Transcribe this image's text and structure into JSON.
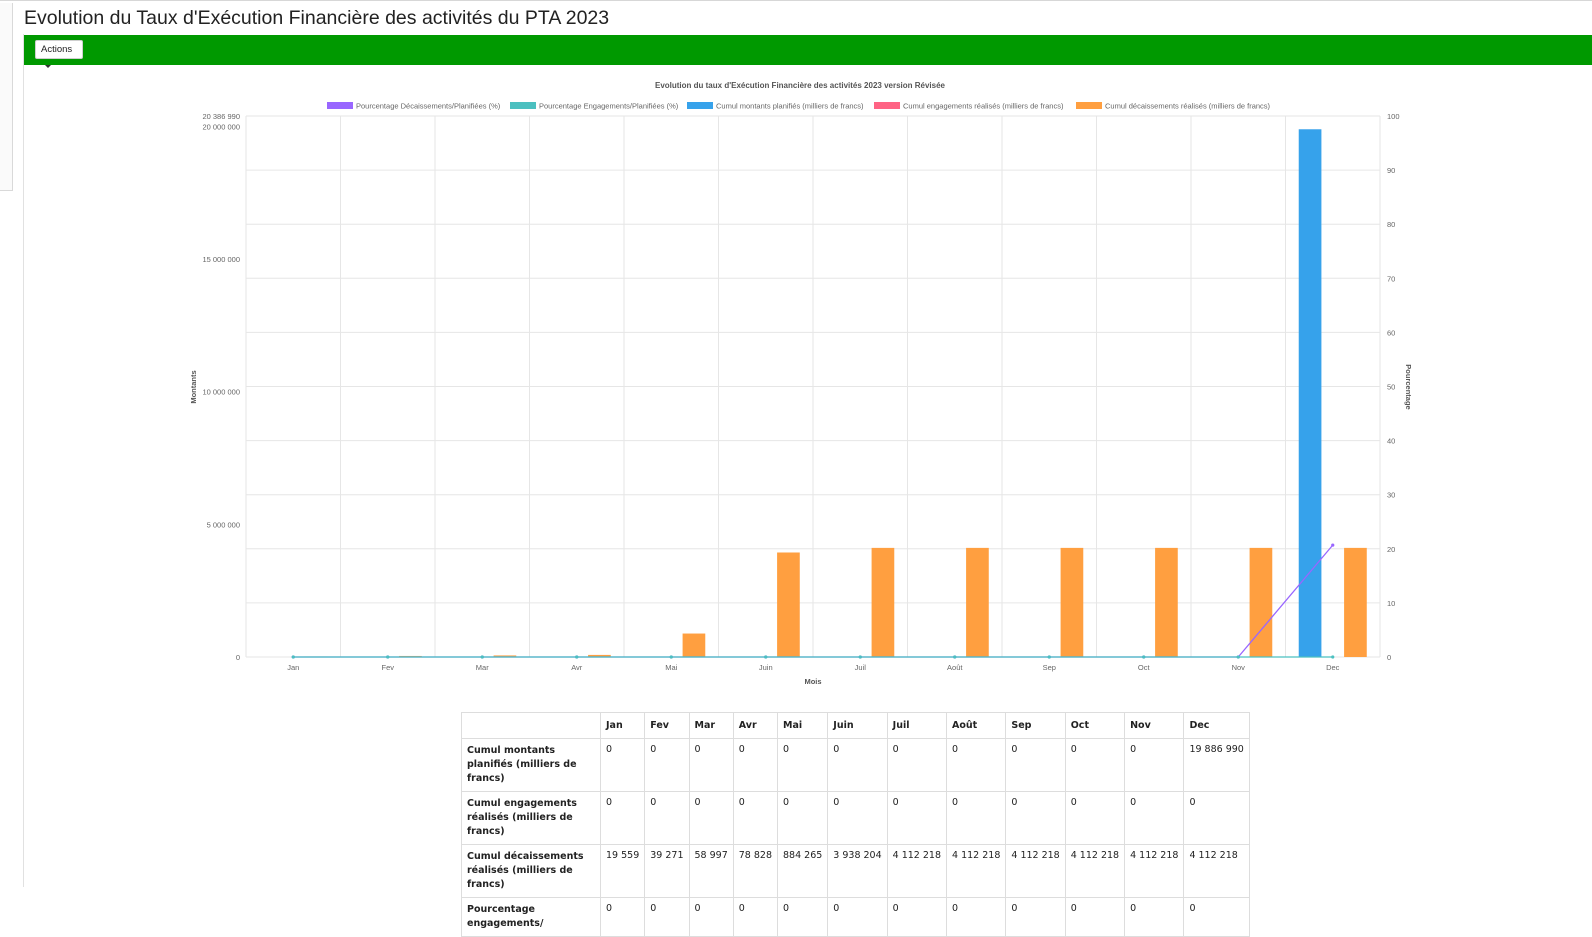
{
  "page": {
    "title": "Evolution du Taux d'Exécution Financière des activités du PTA 2023"
  },
  "toolbar": {
    "actions_label": "Actions",
    "color": "#009900"
  },
  "chart_data": {
    "type": "bar",
    "title": "Evolution du taux d'Exécution Financière des activités 2023 version Révisée",
    "xlabel": "Mois",
    "ylabel_left": "Montants",
    "ylabel_right": "Pourcentage",
    "categories": [
      "Jan",
      "Fev",
      "Mar",
      "Avr",
      "Mai",
      "Juin",
      "Juil",
      "Août",
      "Sep",
      "Oct",
      "Nov",
      "Dec"
    ],
    "y_left": {
      "ylim": [
        0,
        20386990
      ],
      "ticks": [
        0,
        5000000,
        10000000,
        15000000,
        20000000,
        20386990
      ],
      "tick_labels": [
        "0",
        "5 000 000",
        "10 000 000",
        "15 000 000",
        "20 000 000",
        "20 386 990"
      ]
    },
    "y_right": {
      "ylim": [
        0,
        100
      ],
      "ticks": [
        0,
        10,
        20,
        30,
        40,
        50,
        60,
        70,
        80,
        90,
        100
      ],
      "tick_labels": [
        "0",
        "10",
        "20",
        "30",
        "40",
        "50",
        "60",
        "70",
        "80",
        "90",
        "100"
      ]
    },
    "grid": true,
    "legend_position": "top",
    "series": [
      {
        "name": "Pourcentage Décaissements/Planifiées (%)",
        "kind": "line",
        "axis": "right",
        "color": "#9966ff",
        "values": [
          0,
          0,
          0,
          0,
          0,
          0,
          0,
          0,
          0,
          0,
          0,
          20.68
        ]
      },
      {
        "name": "Pourcentage Engagements/Planifiées (%)",
        "kind": "line",
        "axis": "right",
        "color": "#4bc0c0",
        "values": [
          0,
          0,
          0,
          0,
          0,
          0,
          0,
          0,
          0,
          0,
          0,
          0
        ]
      },
      {
        "name": "Cumul montants planifiés (milliers de francs)",
        "kind": "bar",
        "axis": "left",
        "color": "#36a2eb",
        "values": [
          0,
          0,
          0,
          0,
          0,
          0,
          0,
          0,
          0,
          0,
          0,
          19886990
        ]
      },
      {
        "name": "Cumul engagements réalisés (milliers de francs)",
        "kind": "bar",
        "axis": "left",
        "color": "#ff6384",
        "values": [
          0,
          0,
          0,
          0,
          0,
          0,
          0,
          0,
          0,
          0,
          0,
          0
        ]
      },
      {
        "name": "Cumul décaissements réalisés (milliers de francs)",
        "kind": "bar",
        "axis": "left",
        "color": "#ff9f40",
        "values": [
          19559,
          39271,
          58997,
          78828,
          884265,
          3938204,
          4112218,
          4112218,
          4112218,
          4112218,
          4112218,
          4112218
        ]
      }
    ]
  },
  "table": {
    "columns": [
      "",
      "Jan",
      "Fev",
      "Mar",
      "Avr",
      "Mai",
      "Juin",
      "Juil",
      "Août",
      "Sep",
      "Oct",
      "Nov",
      "Dec"
    ],
    "rows": [
      {
        "label": "Cumul montants planifiés (milliers de francs)",
        "cells": [
          "0",
          "0",
          "0",
          "0",
          "0",
          "0",
          "0",
          "0",
          "0",
          "0",
          "0",
          "19 886 990"
        ]
      },
      {
        "label": "Cumul engagements réalisés (milliers de francs)",
        "cells": [
          "0",
          "0",
          "0",
          "0",
          "0",
          "0",
          "0",
          "0",
          "0",
          "0",
          "0",
          "0"
        ]
      },
      {
        "label": "Cumul décaissements réalisés (milliers de francs)",
        "cells": [
          "19 559",
          "39 271",
          "58 997",
          "78 828",
          "884 265",
          "3 938 204",
          "4 112 218",
          "4 112 218",
          "4 112 218",
          "4 112 218",
          "4 112 218",
          "4 112 218"
        ]
      },
      {
        "label": "Pourcentage engagements/",
        "cells": [
          "0",
          "0",
          "0",
          "0",
          "0",
          "0",
          "0",
          "0",
          "0",
          "0",
          "0",
          "0"
        ]
      }
    ]
  }
}
